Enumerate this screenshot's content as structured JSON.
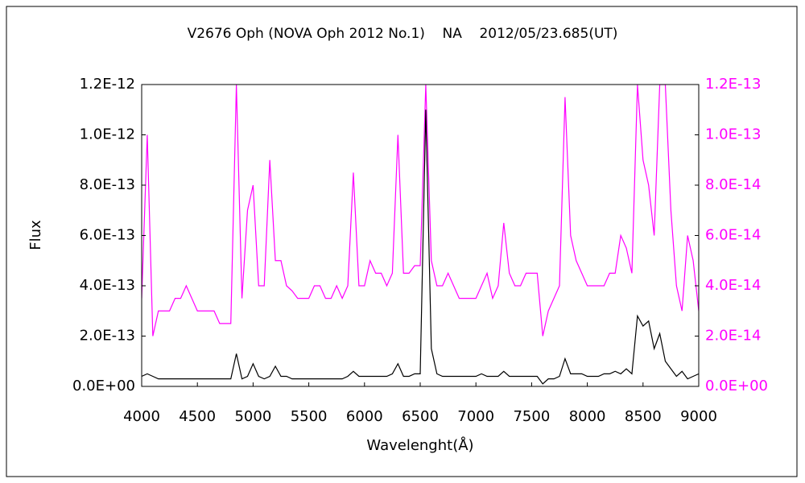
{
  "chart_data": {
    "type": "line",
    "title": "V2676 Oph (NOVA Oph 2012 No.1)    NA    2012/05/23.685(UT)",
    "x_label": "Wavelenght(Å)",
    "y_label": "Flux",
    "xlim": [
      4000,
      9000
    ],
    "xticks": [
      4000,
      4500,
      5000,
      5500,
      6000,
      6500,
      7000,
      7500,
      8000,
      8500,
      9000
    ],
    "ylim": [
      0,
      1.2e-12
    ],
    "yticks": [
      {
        "value": 0,
        "label": "0.0E+00"
      },
      {
        "value": 2e-13,
        "label": "2.0E-13"
      },
      {
        "value": 4e-13,
        "label": "4.0E-13"
      },
      {
        "value": 6e-13,
        "label": "6.0E-13"
      },
      {
        "value": 8e-13,
        "label": "8.0E-13"
      },
      {
        "value": 1e-12,
        "label": "1.0E-12"
      },
      {
        "value": 1.2e-12,
        "label": "1.2E-12"
      }
    ],
    "y2lim": [
      0,
      1.2e-13
    ],
    "y2ticks": [
      {
        "value": 0,
        "label": "0.0E+00"
      },
      {
        "value": 2e-14,
        "label": "2.0E-14"
      },
      {
        "value": 4e-14,
        "label": "4.0E-14"
      },
      {
        "value": 6e-14,
        "label": "6.0E-14"
      },
      {
        "value": 8e-14,
        "label": "8.0E-14"
      },
      {
        "value": 1e-13,
        "label": "1.0E-13"
      },
      {
        "value": 1.2e-13,
        "label": "1.2E-13"
      }
    ],
    "x": [
      4000,
      4050,
      4100,
      4150,
      4200,
      4250,
      4300,
      4350,
      4400,
      4450,
      4500,
      4550,
      4600,
      4650,
      4700,
      4750,
      4800,
      4850,
      4900,
      4950,
      5000,
      5050,
      5100,
      5150,
      5200,
      5250,
      5300,
      5350,
      5400,
      5450,
      5500,
      5550,
      5600,
      5650,
      5700,
      5750,
      5800,
      5850,
      5900,
      5950,
      6000,
      6050,
      6100,
      6150,
      6200,
      6250,
      6300,
      6350,
      6400,
      6450,
      6500,
      6550,
      6600,
      6650,
      6700,
      6750,
      6800,
      6850,
      6900,
      6950,
      7000,
      7050,
      7100,
      7150,
      7200,
      7250,
      7300,
      7350,
      7400,
      7450,
      7500,
      7550,
      7600,
      7650,
      7700,
      7750,
      7800,
      7850,
      7900,
      7950,
      8000,
      8050,
      8100,
      8150,
      8200,
      8250,
      8300,
      8350,
      8400,
      8450,
      8500,
      8550,
      8600,
      8650,
      8700,
      8750,
      8800,
      8850,
      8900,
      8950,
      9000
    ],
    "series": [
      {
        "color": "#ff00ff",
        "axis": "y2",
        "values": [
          3.5e-14,
          1e-13,
          2e-14,
          3e-14,
          3e-14,
          3e-14,
          3.5e-14,
          3.5e-14,
          4e-14,
          3.5e-14,
          3e-14,
          3e-14,
          3e-14,
          3e-14,
          2.5e-14,
          2.5e-14,
          2.5e-14,
          1.2e-13,
          3.5e-14,
          7e-14,
          8e-14,
          4e-14,
          4e-14,
          9e-14,
          5e-14,
          5e-14,
          4e-14,
          3.8e-14,
          3.5e-14,
          3.5e-14,
          3.5e-14,
          4e-14,
          4e-14,
          3.5e-14,
          3.5e-14,
          4e-14,
          3.5e-14,
          4e-14,
          8.5e-14,
          4e-14,
          4e-14,
          5e-14,
          4.5e-14,
          4.5e-14,
          4e-14,
          4.5e-14,
          1e-13,
          4.5e-14,
          4.5e-14,
          4.8e-14,
          4.8e-14,
          1.2e-13,
          5e-14,
          4e-14,
          4e-14,
          4.5e-14,
          4e-14,
          3.5e-14,
          3.5e-14,
          3.5e-14,
          3.5e-14,
          4e-14,
          4.5e-14,
          3.5e-14,
          4e-14,
          6.5e-14,
          4.5e-14,
          4e-14,
          4e-14,
          4.5e-14,
          4.5e-14,
          4.5e-14,
          2e-14,
          3e-14,
          3.5e-14,
          4e-14,
          1.15e-13,
          6e-14,
          5e-14,
          4.5e-14,
          4e-14,
          4e-14,
          4e-14,
          4e-14,
          4.5e-14,
          4.5e-14,
          6e-14,
          5.5e-14,
          4.5e-14,
          1.2e-13,
          9e-14,
          8e-14,
          6e-14,
          1.2e-13,
          1.2e-13,
          7e-14,
          4e-14,
          3e-14,
          6e-14,
          5e-14,
          3e-14
        ]
      },
      {
        "color": "#000000",
        "axis": "y",
        "values": [
          4e-14,
          5e-14,
          4e-14,
          3e-14,
          3e-14,
          3e-14,
          3e-14,
          3e-14,
          3e-14,
          3e-14,
          3e-14,
          3e-14,
          3e-14,
          3e-14,
          3e-14,
          3e-14,
          3e-14,
          1.3e-13,
          3e-14,
          4e-14,
          9e-14,
          4e-14,
          3e-14,
          4e-14,
          8e-14,
          4e-14,
          4e-14,
          3e-14,
          3e-14,
          3e-14,
          3e-14,
          3e-14,
          3e-14,
          3e-14,
          3e-14,
          3e-14,
          3e-14,
          4e-14,
          6e-14,
          4e-14,
          4e-14,
          4e-14,
          4e-14,
          4e-14,
          4e-14,
          5e-14,
          9e-14,
          4e-14,
          4e-14,
          5e-14,
          5e-14,
          1.1e-12,
          1.5e-13,
          5e-14,
          4e-14,
          4e-14,
          4e-14,
          4e-14,
          4e-14,
          4e-14,
          4e-14,
          5e-14,
          4e-14,
          4e-14,
          4e-14,
          6e-14,
          4e-14,
          4e-14,
          4e-14,
          4e-14,
          4e-14,
          4e-14,
          1e-14,
          3e-14,
          3e-14,
          4e-14,
          1.1e-13,
          5e-14,
          5e-14,
          5e-14,
          4e-14,
          4e-14,
          4e-14,
          5e-14,
          5e-14,
          6e-14,
          5e-14,
          7e-14,
          5e-14,
          2.8e-13,
          2.4e-13,
          2.6e-13,
          1.5e-13,
          2.1e-13,
          1e-13,
          7e-14,
          4e-14,
          6e-14,
          3e-14,
          4e-14,
          5e-14
        ]
      }
    ]
  }
}
